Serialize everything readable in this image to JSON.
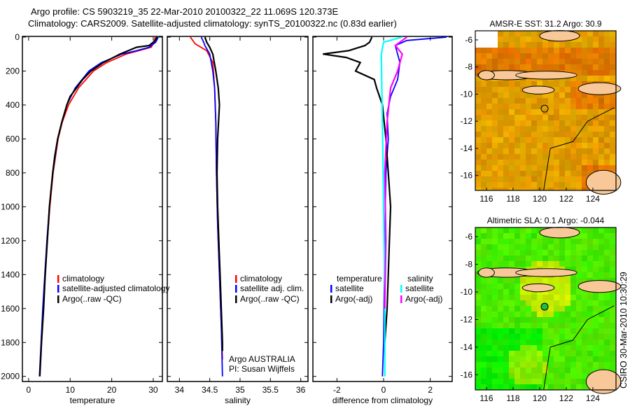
{
  "title": {
    "line1": "Argo profile: CS 5903219_35 22-Mar-2010 20100322_22 11.069S 120.373E",
    "line2": "Climatology: CARS2009. Satellite-adjusted climatology: synTS_20100322.nc (0.83d earlier)"
  },
  "colors": {
    "climatology": "#ff0000",
    "satellite": "#0000ff",
    "argo": "#000000",
    "sal_satellite": "#00ffff",
    "sal_argo": "#ff00ff",
    "sst_base": "#f0a000",
    "sla_base": "#88e000",
    "land": "#f8c898"
  },
  "credit": "CSIRO 30-Mar-2010 10:30:29",
  "chart_data": [
    {
      "type": "line",
      "xlabel": "temperature",
      "ylabel": "",
      "xlim": [
        -1.5,
        32.2
      ],
      "ylim": [
        2030,
        0
      ],
      "xticks": [
        0,
        10,
        20,
        30
      ],
      "yticks": [
        0,
        200,
        400,
        600,
        800,
        1000,
        1200,
        1400,
        1600,
        1800,
        2000
      ],
      "legend": [
        "climatology",
        "satellite-adjusted climatology",
        "Argo(..raw -QC)"
      ],
      "series": [
        {
          "name": "climatology",
          "color": "climatology",
          "depth": [
            0,
            30,
            60,
            80,
            100,
            150,
            200,
            300,
            400,
            500,
            600,
            800,
            1000,
            1200,
            1400,
            1600,
            1800
          ],
          "values": [
            30.5,
            30.2,
            29.5,
            26.5,
            23.5,
            18.8,
            15.6,
            12,
            9.6,
            8.1,
            7.1,
            5.9,
            5.1,
            4.5,
            4,
            3.5,
            3
          ]
        },
        {
          "name": "satellite-adjusted climatology",
          "color": "satellite",
          "depth": [
            0,
            30,
            60,
            80,
            100,
            150,
            200,
            300,
            400,
            500,
            600,
            800,
            1000,
            1200,
            1400,
            1600,
            1800,
            2000
          ],
          "values": [
            31.2,
            30.6,
            29,
            26,
            22.5,
            17.5,
            14.5,
            11.2,
            9.2,
            8,
            7,
            5.8,
            5,
            4.4,
            3.9,
            3.4,
            3,
            2.6
          ]
        },
        {
          "name": "Argo(..raw -QC)",
          "color": "argo",
          "depth": [
            0,
            20,
            50,
            60,
            80,
            100,
            150,
            200,
            250,
            300,
            350,
            400,
            500,
            600,
            700,
            800,
            1000,
            1200,
            1400,
            1600,
            1800,
            2000
          ],
          "values": [
            30.9,
            30.5,
            29,
            26,
            24,
            22,
            18,
            15,
            13,
            11.5,
            10,
            9.2,
            8,
            7,
            6.3,
            5.8,
            5,
            4.5,
            4,
            3.6,
            3.1,
            2.7
          ]
        }
      ]
    },
    {
      "type": "line",
      "xlabel": "salinity",
      "xlim": [
        33.8,
        36.12
      ],
      "ylim": [
        2030,
        0
      ],
      "xticks": [
        34,
        34.5,
        35,
        35.5,
        36
      ],
      "legend": [
        "climatology",
        "satellite adj. clim.",
        "Argo(..raw -QC)"
      ],
      "annotation": [
        "Argo AUSTRALIA",
        "PI: Susan Wijffels"
      ],
      "series": [
        {
          "name": "climatology",
          "color": "climatology",
          "depth": [
            0,
            40,
            80,
            150,
            300,
            500,
            800,
            1100,
            1400,
            1700,
            1900
          ],
          "values": [
            34.18,
            34.26,
            34.45,
            34.55,
            34.58,
            34.6,
            34.61,
            34.63,
            34.66,
            34.69,
            34.71
          ]
        },
        {
          "name": "satellite adj. clim.",
          "color": "satellite",
          "depth": [
            0,
            30,
            50,
            100,
            200,
            300,
            500,
            800,
            1100,
            1400,
            1700,
            2000
          ],
          "values": [
            34.36,
            34.4,
            34.42,
            34.5,
            34.55,
            34.58,
            34.6,
            34.61,
            34.63,
            34.66,
            34.69,
            34.71
          ]
        },
        {
          "name": "Argo(..raw -QC)",
          "color": "argo",
          "depth": [
            0,
            30,
            60,
            100,
            200,
            300,
            400,
            600,
            800,
            1000,
            1200,
            1400,
            1600,
            1800,
            1850
          ],
          "values": [
            34.42,
            34.45,
            34.5,
            34.55,
            34.6,
            34.64,
            34.66,
            34.63,
            34.62,
            34.63,
            34.65,
            34.67,
            34.69,
            34.71,
            34.71
          ]
        }
      ]
    },
    {
      "type": "line",
      "xlabel": "difference from climatology",
      "xlim": [
        -3.03,
        2.94
      ],
      "ylim": [
        2030,
        0
      ],
      "xticks": [
        -2,
        0,
        2
      ],
      "legend_titles": [
        "temperature",
        "salinity"
      ],
      "legend": [
        "satellite",
        "Argo(-adj)",
        "satellite",
        "Argo(-adj)"
      ],
      "series": [
        {
          "name": "temperature satellite",
          "color": "satellite",
          "depth": [
            0,
            20,
            50,
            100,
            150,
            250,
            350,
            450,
            600,
            800,
            1200,
            1800,
            2000
          ],
          "values": [
            2.7,
            1,
            0.5,
            0.6,
            0.7,
            0.6,
            0.3,
            0.15,
            0.2,
            0.1,
            0.05,
            0,
            -0.05
          ]
        },
        {
          "name": "temperature Argo(-adj)",
          "color": "argo",
          "depth": [
            0,
            30,
            50,
            80,
            100,
            120,
            150,
            200,
            250,
            300,
            400,
            600,
            800,
            1000,
            1200,
            1400,
            1600,
            1800
          ],
          "values": [
            -0.5,
            -0.6,
            -0.8,
            -1.5,
            -2.6,
            -1.6,
            -1,
            -1.2,
            -0.4,
            -0.3,
            -0.05,
            0.1,
            0.2,
            0.3,
            0.25,
            0.2,
            0.15,
            0.05
          ]
        },
        {
          "name": "salinity satellite",
          "color": "sal_satellite",
          "depth": [
            0,
            30,
            100,
            500,
            1000,
            1500,
            2000
          ],
          "values": [
            0.8,
            0,
            -0.1,
            -0.05,
            0,
            0.05,
            0.05
          ]
        },
        {
          "name": "salinity Argo(-adj)",
          "color": "sal_argo",
          "depth": [
            0,
            50,
            100,
            200,
            300,
            500,
            800,
            1200,
            1600
          ],
          "values": [
            1,
            0.5,
            0.8,
            0.6,
            0.3,
            0.15,
            0.05,
            0.1,
            0.05
          ]
        }
      ]
    },
    {
      "type": "heatmap",
      "title": "AMSR-E SST: 31.2 Argo: 30.9",
      "xlim": [
        115.16,
        125.74
      ],
      "ylim": [
        -17.1,
        -5.33
      ],
      "xticks": [
        116,
        118,
        120,
        122,
        124
      ],
      "yticks": [
        -6,
        -8,
        -10,
        -12,
        -14,
        -16
      ],
      "marker": {
        "lon": 120.373,
        "lat": -11.069
      }
    },
    {
      "type": "heatmap",
      "title": "Altimetric SLA: 0.1 Argo: -0.044",
      "xlim": [
        115.16,
        125.74
      ],
      "ylim": [
        -17.1,
        -5.33
      ],
      "xticks": [
        116,
        118,
        120,
        122,
        124
      ],
      "yticks": [
        -6,
        -8,
        -10,
        -12,
        -14,
        -16
      ],
      "marker": {
        "lon": 120.373,
        "lat": -11.069
      }
    }
  ]
}
